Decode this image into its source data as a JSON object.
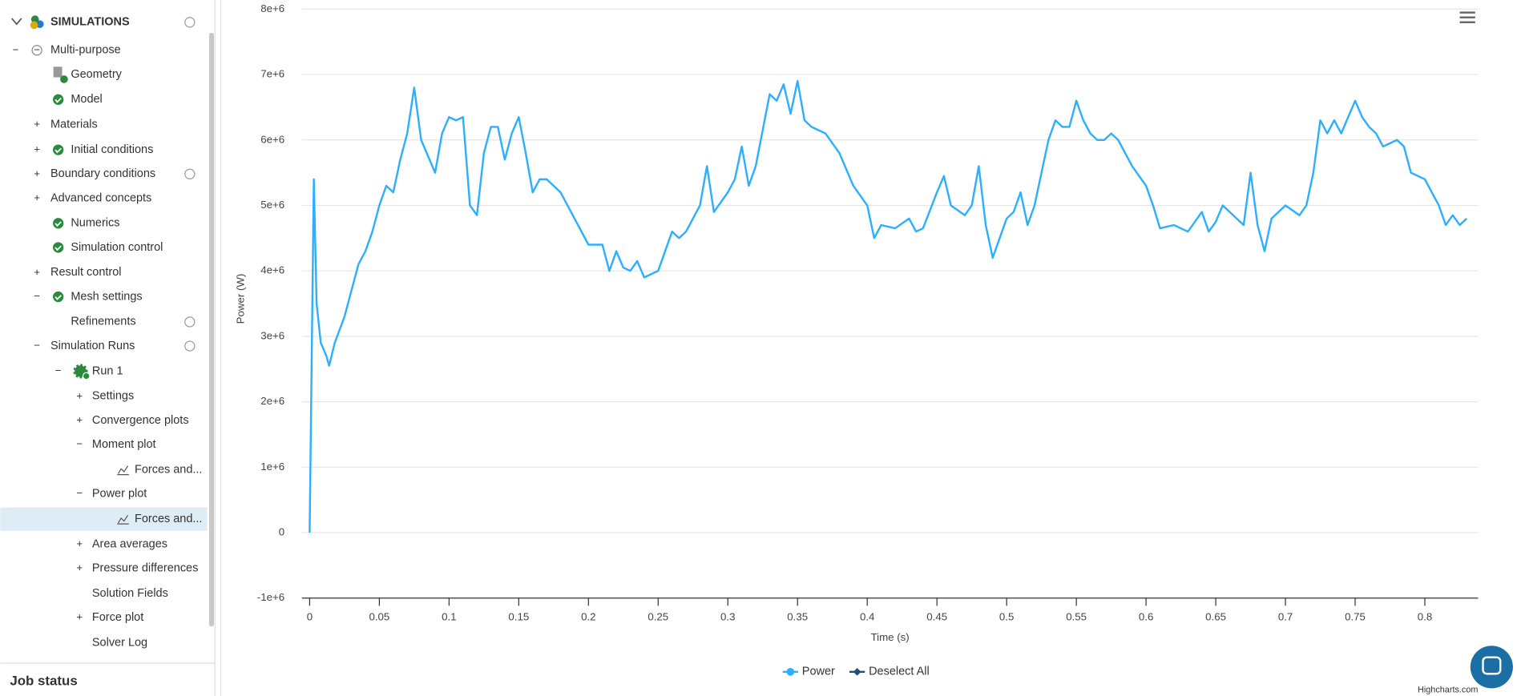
{
  "sidebar": {
    "header": "SIMULATIONS",
    "items": [
      "Multi-purpose",
      "Geometry",
      "Model",
      "Materials",
      "Initial conditions",
      "Boundary conditions",
      "Advanced concepts",
      "Numerics",
      "Simulation control",
      "Result control",
      "Mesh settings",
      "Refinements",
      "Simulation Runs",
      "Run 1",
      "Settings",
      "Convergence plots",
      "Moment plot",
      "Forces and...",
      "Power plot",
      "Forces and...",
      "Area averages",
      "Pressure differences",
      "Solution Fields",
      "Force plot",
      "Solver Log"
    ],
    "footer": "Job status"
  },
  "chart_data": {
    "type": "line",
    "xlabel": "Time (s)",
    "ylabel": "Power (W)",
    "credit": "Highcharts.com",
    "deselect_label": "Deselect All",
    "x": [
      0,
      0.003,
      0.005,
      0.008,
      0.012,
      0.014,
      0.018,
      0.025,
      0.03,
      0.035,
      0.04,
      0.045,
      0.05,
      0.055,
      0.06,
      0.065,
      0.07,
      0.075,
      0.08,
      0.09,
      0.095,
      0.1,
      0.105,
      0.11,
      0.115,
      0.12,
      0.125,
      0.13,
      0.135,
      0.14,
      0.145,
      0.15,
      0.155,
      0.16,
      0.165,
      0.17,
      0.18,
      0.19,
      0.2,
      0.21,
      0.215,
      0.22,
      0.225,
      0.23,
      0.235,
      0.24,
      0.25,
      0.26,
      0.265,
      0.27,
      0.28,
      0.285,
      0.29,
      0.3,
      0.305,
      0.31,
      0.315,
      0.32,
      0.33,
      0.335,
      0.34,
      0.345,
      0.35,
      0.355,
      0.36,
      0.37,
      0.38,
      0.39,
      0.4,
      0.405,
      0.41,
      0.42,
      0.43,
      0.435,
      0.44,
      0.45,
      0.455,
      0.46,
      0.47,
      0.475,
      0.48,
      0.485,
      0.49,
      0.5,
      0.505,
      0.51,
      0.515,
      0.52,
      0.53,
      0.535,
      0.54,
      0.545,
      0.55,
      0.555,
      0.56,
      0.565,
      0.57,
      0.575,
      0.58,
      0.59,
      0.6,
      0.605,
      0.61,
      0.62,
      0.63,
      0.64,
      0.645,
      0.65,
      0.655,
      0.66,
      0.665,
      0.67,
      0.675,
      0.68,
      0.685,
      0.69,
      0.7,
      0.71,
      0.715,
      0.72,
      0.725,
      0.73,
      0.735,
      0.74,
      0.75,
      0.755,
      0.76,
      0.765,
      0.77,
      0.78,
      0.785,
      0.79,
      0.8,
      0.81,
      0.815,
      0.82,
      0.825,
      0.83
    ],
    "series": [
      {
        "name": "Power",
        "color": "#2caffe",
        "values": [
          0,
          5400000.0,
          3500000.0,
          2900000.0,
          2700000.0,
          2550000.0,
          2900000.0,
          3300000.0,
          3700000.0,
          4100000.0,
          4300000.0,
          4600000.0,
          5000000.0,
          5300000.0,
          5200000.0,
          5700000.0,
          6100000.0,
          6800000.0,
          6000000.0,
          5500000.0,
          6100000.0,
          6350000.0,
          6300000.0,
          6350000.0,
          5000000.0,
          4850000.0,
          5800000.0,
          6200000.0,
          6200000.0,
          5700000.0,
          6100000.0,
          6350000.0,
          5800000.0,
          5200000.0,
          5400000.0,
          5400000.0,
          5200000.0,
          4800000.0,
          4400000.0,
          4400000.0,
          4000000.0,
          4300000.0,
          4050000.0,
          4000000.0,
          4150000.0,
          3900000.0,
          4000000.0,
          4600000.0,
          4500000.0,
          4600000.0,
          5000000.0,
          5600000.0,
          4900000.0,
          5200000.0,
          5400000.0,
          5900000.0,
          5300000.0,
          5600000.0,
          6700000.0,
          6600000.0,
          6850000.0,
          6400000.0,
          6900000.0,
          6300000.0,
          6200000.0,
          6100000.0,
          5800000.0,
          5300000.0,
          5000000.0,
          4500000.0,
          4700000.0,
          4650000.0,
          4800000.0,
          4600000.0,
          4650000.0,
          5200000.0,
          5450000.0,
          5000000.0,
          4850000.0,
          5000000.0,
          5600000.0,
          4700000.0,
          4200000.0,
          4800000.0,
          4900000.0,
          5200000.0,
          4700000.0,
          5000000.0,
          6000000.0,
          6300000.0,
          6200000.0,
          6200000.0,
          6600000.0,
          6300000.0,
          6100000.0,
          6000000.0,
          6000000.0,
          6100000.0,
          6000000.0,
          5600000.0,
          5300000.0,
          5000000.0,
          4650000.0,
          4700000.0,
          4600000.0,
          4900000.0,
          4600000.0,
          4750000.0,
          5000000.0,
          4900000.0,
          4800000.0,
          4700000.0,
          5500000.0,
          4700000.0,
          4300000.0,
          4800000.0,
          5000000.0,
          4850000.0,
          5000000.0,
          5500000.0,
          6300000.0,
          6100000.0,
          6300000.0,
          6100000.0,
          6600000.0,
          6350000.0,
          6200000.0,
          6100000.0,
          5900000.0,
          6000000.0,
          5900000.0,
          5500000.0,
          5400000.0,
          5000000.0,
          4700000.0,
          4850000.0,
          4700000.0,
          4800000.0
        ]
      }
    ],
    "xlim": [
      -0.0055,
      0.8382
    ],
    "xticks": [
      0,
      0.05,
      0.1,
      0.15,
      0.2,
      0.25,
      0.3,
      0.35,
      0.4,
      0.45,
      0.5,
      0.55,
      0.6,
      0.65,
      0.7,
      0.75,
      0.8
    ],
    "ylim": [
      -1000000,
      8000000
    ],
    "yticks": [
      {
        "value": -1000000,
        "label": "-1e+6"
      },
      0,
      {
        "value": 1000000,
        "label": "1e+6"
      },
      {
        "value": 2000000,
        "label": "2e+6"
      },
      {
        "value": 3000000,
        "label": "3e+6"
      },
      {
        "value": 4000000,
        "label": "4e+6"
      },
      {
        "value": 5000000,
        "label": "5e+6"
      },
      {
        "value": 6000000,
        "label": "6e+6"
      },
      {
        "value": 7000000,
        "label": "7e+6"
      },
      {
        "value": 8000000,
        "label": "8e+6"
      }
    ],
    "grid": true
  }
}
